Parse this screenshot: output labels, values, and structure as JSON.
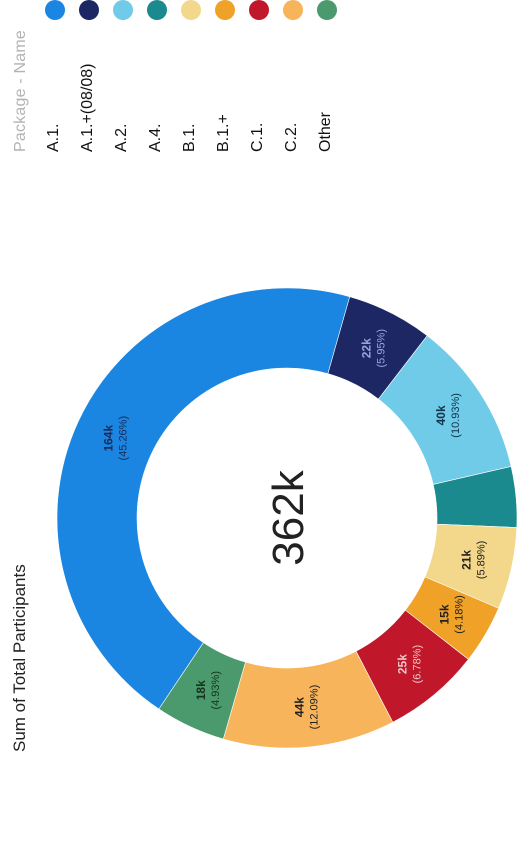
{
  "legend": {
    "title": "Package - Name",
    "items": [
      {
        "label": "A.1.",
        "color": "#1b86e2"
      },
      {
        "label": "A.1.+(08/08)",
        "color": "#1c2763"
      },
      {
        "label": "A.2.",
        "color": "#6fcbe8"
      },
      {
        "label": "A.4.",
        "color": "#1b8a8f"
      },
      {
        "label": "B.1.",
        "color": "#f3d88b"
      },
      {
        "label": "B.1.+",
        "color": "#f0a127"
      },
      {
        "label": "C.1.",
        "color": "#c0172b"
      },
      {
        "label": "C.2.",
        "color": "#f7b45a"
      },
      {
        "label": "Other",
        "color": "#4b9a6d"
      }
    ]
  },
  "chart_data": {
    "type": "pie",
    "title": "Sum of Total Participants",
    "total_label": "362k",
    "legend_position": "right",
    "slices": [
      {
        "name": "A.1.",
        "value": 164,
        "label": "164k",
        "pct": "(45.26%)",
        "color": "#1b86e2",
        "text_color": "#1b2a55"
      },
      {
        "name": "A.1.+(08/08)",
        "value": 22,
        "label": "22k",
        "pct": "(5.95%)",
        "color": "#1c2763",
        "text_color": "#9aa7d8"
      },
      {
        "name": "A.2.",
        "value": 40,
        "label": "40k",
        "pct": "(10.93%)",
        "color": "#6fcbe8",
        "text_color": "#12324a"
      },
      {
        "name": "A.4.",
        "value": 15.5,
        "label": "",
        "pct": "",
        "color": "#1b8a8f",
        "text_color": "#ffffff"
      },
      {
        "name": "B.1.",
        "value": 21,
        "label": "21k",
        "pct": "(5.89%)",
        "color": "#f3d88b",
        "text_color": "#222222"
      },
      {
        "name": "B.1.+",
        "value": 15,
        "label": "15k",
        "pct": "(4.18%)",
        "color": "#f0a127",
        "text_color": "#222222"
      },
      {
        "name": "C.1.",
        "value": 25,
        "label": "25k",
        "pct": "(6.78%)",
        "color": "#c0172b",
        "text_color": "#f0c4c8"
      },
      {
        "name": "C.2.",
        "value": 44,
        "label": "44k",
        "pct": "(12.09%)",
        "color": "#f7b45a",
        "text_color": "#222222"
      },
      {
        "name": "Other",
        "value": 18,
        "label": "18k",
        "pct": "(4.93%)",
        "color": "#4b9a6d",
        "text_color": "#17331f"
      }
    ]
  }
}
